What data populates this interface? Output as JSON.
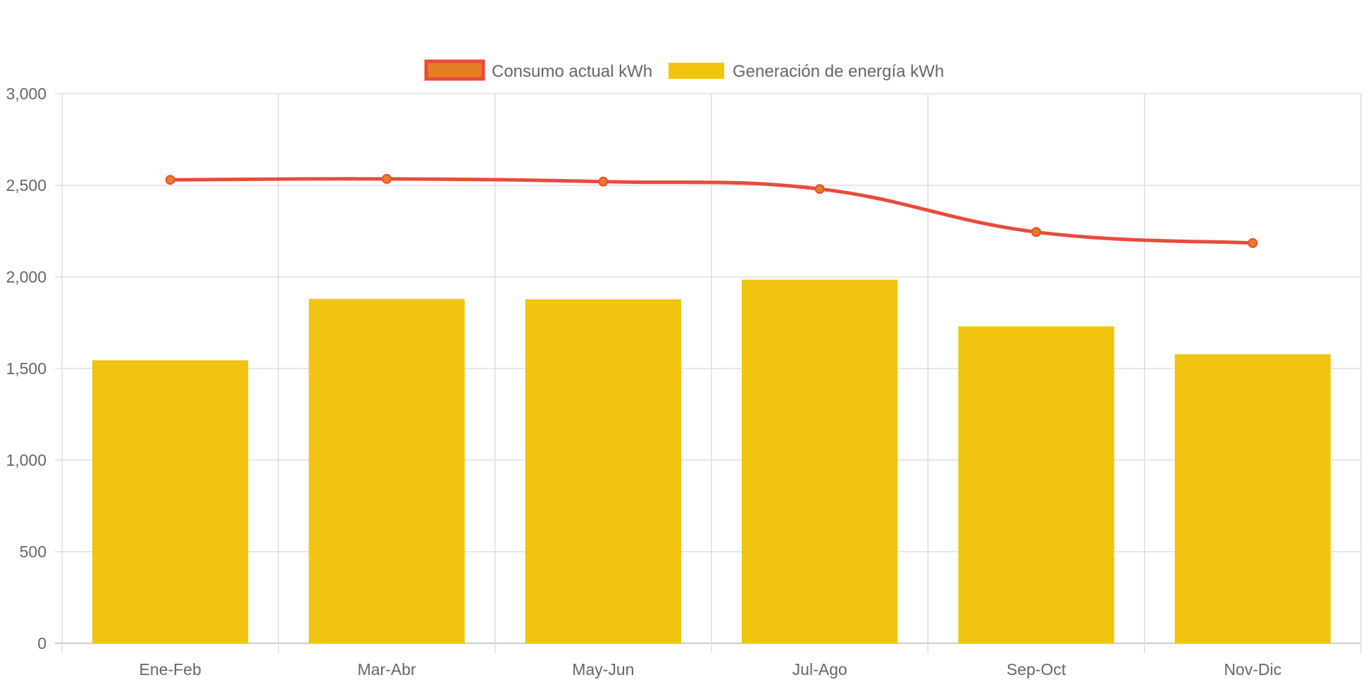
{
  "chart_data": {
    "type": "bar",
    "categories": [
      "Ene-Feb",
      "Mar-Abr",
      "May-Jun",
      "Jul-Ago",
      "Sep-Oct",
      "Nov-Dic"
    ],
    "series": [
      {
        "name": "Consumo actual kWh",
        "type": "line",
        "values": [
          2530,
          2535,
          2520,
          2480,
          2245,
          2185
        ],
        "color": "#e74c3c",
        "point_color": "#e67e22"
      },
      {
        "name": "Generación de energía kWh",
        "type": "bar",
        "values": [
          1545,
          1880,
          1878,
          1985,
          1730,
          1578
        ],
        "color": "#f1c40f"
      }
    ],
    "title": "",
    "xlabel": "",
    "ylabel": "",
    "ylim": [
      0,
      3000
    ],
    "yticks": [
      0,
      500,
      1000,
      1500,
      2000,
      2500,
      3000
    ],
    "ytick_labels": [
      "0",
      "500",
      "1,000",
      "1,500",
      "2,000",
      "2,500",
      "3,000"
    ],
    "grid": true,
    "grid_color": "#dddddd",
    "legend_position": "top-center"
  }
}
